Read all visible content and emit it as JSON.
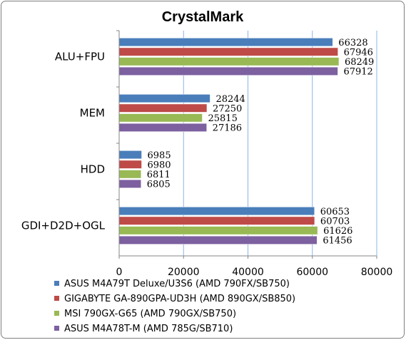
{
  "chart_data": {
    "type": "bar",
    "orientation": "horizontal",
    "title": "CrystalMark",
    "xlabel": "",
    "ylabel": "",
    "categories": [
      "ALU+FPU",
      "MEM",
      "HDD",
      "GDI+D2D+OGL"
    ],
    "series": [
      {
        "name": "ASUS M4A79T Deluxe/U3S6 (AMD 790FX/SB750)",
        "color": "#4a7ebb",
        "values": [
          66328,
          28244,
          6985,
          60653
        ]
      },
      {
        "name": "GIGABYTE GA-890GPA-UD3H (AMD 890GX/SB850)",
        "color": "#be4b48",
        "values": [
          67946,
          27250,
          6980,
          60703
        ]
      },
      {
        "name": "MSI 790GX-G65 (AMD 790GX/SB750)",
        "color": "#98b954",
        "values": [
          68249,
          25815,
          6811,
          61626
        ]
      },
      {
        "name": "ASUS M4A78T-M (AMD 785G/SB710)",
        "color": "#7d60a0",
        "values": [
          67912,
          27186,
          6805,
          61456
        ]
      }
    ],
    "xlim": [
      0,
      80000
    ],
    "xticks": [
      0,
      20000,
      40000,
      60000,
      80000
    ],
    "grid": true,
    "legend_position": "bottom"
  }
}
